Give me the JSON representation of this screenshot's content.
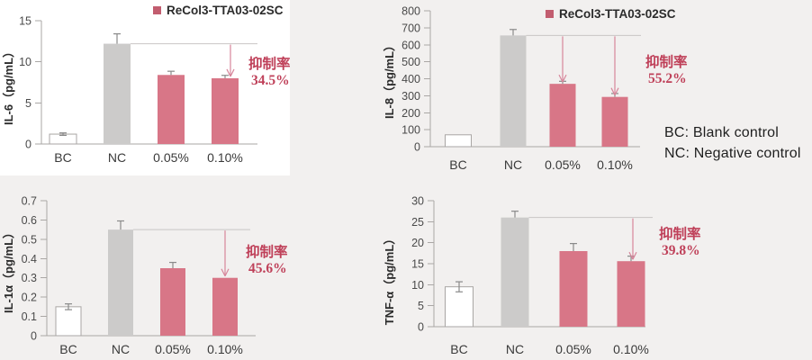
{
  "note": {
    "bc": "BC: Blank control",
    "nc": "NC: Negative control"
  },
  "colors": {
    "pink_bar": "#d87687",
    "gray_bar": "#cccbca",
    "white_bar_fill": "#ffffff",
    "white_bar_border": "#a9a6a4",
    "error_bar": "#8a8a8a",
    "axis": "#aaa7a5",
    "tick_text": "#4a4a4a",
    "category_text": "#3a3a3a",
    "axis_title_text": "#2b2b2b",
    "legend_swatch": "#c25d6f",
    "legend_text": "#2b2b2b",
    "annotation_red": "#bf4059",
    "arrow": "#d7869b",
    "reference_line": "#c9c6c4",
    "note_text": "#1f1f1f",
    "background": "#f2f0ef",
    "panel": "#ffffff"
  },
  "chart_data": [
    {
      "id": "il6",
      "type": "bar",
      "ylabel": "IL-6（pg/mL）",
      "categories": [
        "BC",
        "NC",
        "0.05%",
        "0.10%"
      ],
      "values": [
        1.2,
        12.2,
        8.4,
        8.0
      ],
      "errors": [
        0.15,
        1.2,
        0.45,
        0.35
      ],
      "ylim": [
        0,
        15
      ],
      "yticks": [
        "0",
        "5",
        "10",
        "15"
      ],
      "bar_styles": [
        "white",
        "gray",
        "pink",
        "pink"
      ],
      "legend": "ReCol3-TTA03-02SC",
      "legend_position": "top-right",
      "grid": false,
      "annotation": {
        "label": "抑制率",
        "value": "34.5%",
        "arrow_targets": [
          3
        ],
        "reference": "NC"
      }
    },
    {
      "id": "il8",
      "type": "bar",
      "ylabel": "IL-8（pg/mL）",
      "categories": [
        "BC",
        "NC",
        "0.05%",
        "0.10%"
      ],
      "values": [
        70,
        655,
        370,
        293
      ],
      "errors": [
        0,
        35,
        15,
        20
      ],
      "ylim": [
        0,
        800
      ],
      "yticks": [
        "0",
        "100",
        "200",
        "300",
        "400",
        "500",
        "600",
        "700",
        "800"
      ],
      "bar_styles": [
        "white",
        "gray",
        "pink",
        "pink"
      ],
      "legend": "ReCol3-TTA03-02SC",
      "legend_position": "top-right",
      "grid": false,
      "annotation": {
        "label": "抑制率",
        "value": "55.2%",
        "arrow_targets": [
          2,
          3
        ],
        "reference": "NC"
      }
    },
    {
      "id": "il1a",
      "type": "bar",
      "ylabel": "IL-1α（pg/mL）",
      "categories": [
        "BC",
        "NC",
        "0.05%",
        "0.10%"
      ],
      "values": [
        0.15,
        0.55,
        0.35,
        0.3
      ],
      "errors": [
        0.015,
        0.045,
        0.03,
        0
      ],
      "ylim": [
        0,
        0.7
      ],
      "yticks": [
        "0",
        "0.1",
        "0.2",
        "0.3",
        "0.4",
        "0.5",
        "0.6",
        "0.7"
      ],
      "bar_styles": [
        "white",
        "gray",
        "pink",
        "pink"
      ],
      "legend": null,
      "grid": false,
      "annotation": {
        "label": "抑制率",
        "value": "45.6%",
        "arrow_targets": [
          3
        ],
        "reference": "NC"
      }
    },
    {
      "id": "tnfa",
      "type": "bar",
      "ylabel": "TNF-α（pg/mL）",
      "categories": [
        "BC",
        "NC",
        "0.05%",
        "0.10%"
      ],
      "values": [
        9.5,
        26,
        18,
        15.6
      ],
      "errors": [
        1.2,
        1.5,
        1.8,
        1.2
      ],
      "ylim": [
        0,
        30
      ],
      "yticks": [
        "0",
        "5",
        "10",
        "15",
        "20",
        "25",
        "30"
      ],
      "bar_styles": [
        "white",
        "gray",
        "pink",
        "pink"
      ],
      "legend": null,
      "grid": false,
      "annotation": {
        "label": "抑制率",
        "value": "39.8%",
        "arrow_targets": [
          3
        ],
        "reference": "NC"
      }
    }
  ]
}
